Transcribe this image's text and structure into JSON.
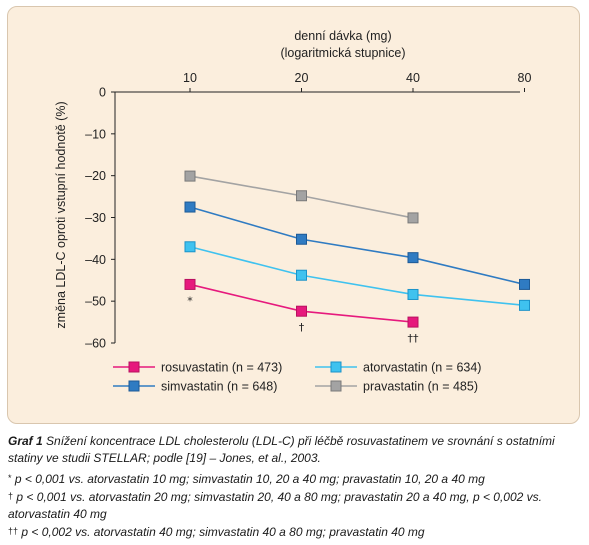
{
  "chart_data": {
    "type": "line",
    "x_title_line1": "denní dávka (mg)",
    "x_title_line2": "(logaritmická stupnice)",
    "ylabel": "změna LDL-C oproti vstupní hodnotě (%)",
    "x_scale": "log",
    "x_ticks": [
      10,
      20,
      40,
      80
    ],
    "x_tick_labels": [
      "10",
      "20",
      "40",
      "80"
    ],
    "y_ticks": [
      0,
      -10,
      -20,
      -30,
      -40,
      -50,
      -60
    ],
    "y_tick_labels": [
      "0",
      "–10",
      "–20",
      "–30",
      "–40",
      "–50",
      "–60"
    ],
    "ylim": [
      -60,
      0
    ],
    "grid": false,
    "legend_position": "bottom",
    "series": [
      {
        "name": "rosuvastatin (n = 473)",
        "color": "#e6197d",
        "border": "#b8115f",
        "x": [
          10,
          20,
          40
        ],
        "y": [
          -46,
          -52.4,
          -55
        ]
      },
      {
        "name": "atorvastatin (n = 634)",
        "color": "#3fc2ef",
        "border": "#1b93c9",
        "x": [
          10,
          20,
          40,
          80
        ],
        "y": [
          -37,
          -43.8,
          -48.4,
          -51
        ]
      },
      {
        "name": "simvastatin (n = 648)",
        "color": "#2f7bc2",
        "border": "#1d5a96",
        "x": [
          10,
          20,
          40,
          80
        ],
        "y": [
          -27.5,
          -35.2,
          -39.6,
          -46
        ]
      },
      {
        "name": "pravastatin (n = 485)",
        "color": "#a3a3a3",
        "border": "#7a7a7a",
        "x": [
          10,
          20,
          40
        ],
        "y": [
          -20.1,
          -24.8,
          -30.1
        ]
      }
    ],
    "annotations": [
      {
        "text": "*",
        "x": 10,
        "y": -46
      },
      {
        "text": "†",
        "x": 20,
        "y": -52.4
      },
      {
        "text": "††",
        "x": 40,
        "y": -55
      }
    ]
  },
  "caption": {
    "label": "Graf 1",
    "text": "Snížení koncentrace LDL cholesterolu (LDL-C) při léčbě rosuvastatinem ve srovnání s ostatními statiny ve studii STELLAR; podle [19] – Jones, et al., 2003."
  },
  "footnotes": [
    {
      "symbol": "*",
      "text": "p < 0,001 vs. atorvastatin 10 mg; simvastatin 10, 20 a 40 mg; pravastatin 10, 20 a 40 mg"
    },
    {
      "symbol": "†",
      "text": "p < 0,001 vs. atorvastatin 20 mg; simvastatin 20, 40 a 80 mg; pravastatin 20 a 40 mg, p < 0,002 vs. atorvastatin 40 mg"
    },
    {
      "symbol": "††",
      "text": "p < 0,002 vs. atorvastatin 40 mg; simvastatin 40 a 80 mg; pravastatin 40 mg"
    }
  ]
}
